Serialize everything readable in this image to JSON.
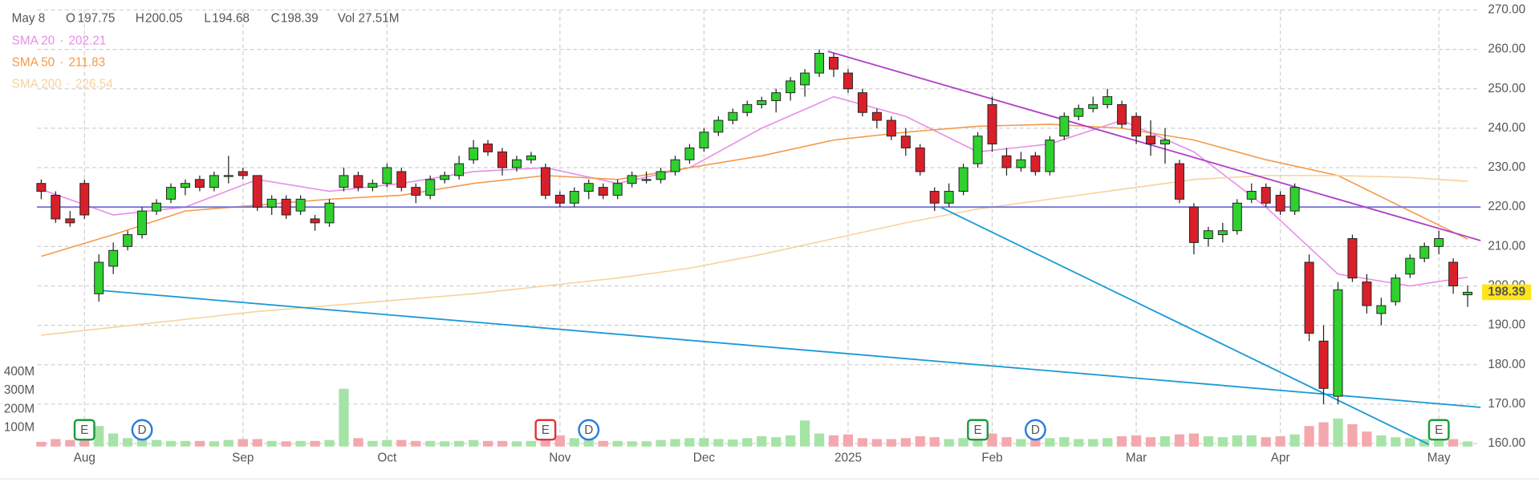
{
  "chart_data": {
    "type": "candlestick",
    "header": {
      "date": "May 8",
      "fields": [
        {
          "label": "O",
          "value": 197.75
        },
        {
          "label": "H",
          "value": 200.05
        },
        {
          "label": "L",
          "value": 194.68
        },
        {
          "label": "C",
          "value": 198.39
        },
        {
          "label": "Vol",
          "value": "27.51M"
        }
      ]
    },
    "separator": "·",
    "categories": [
      null,
      null,
      null,
      "Aug",
      null,
      null,
      null,
      null,
      null,
      null,
      null,
      null,
      null,
      null,
      "Sep",
      null,
      null,
      null,
      null,
      null,
      null,
      null,
      null,
      null,
      "Oct",
      null,
      null,
      null,
      null,
      null,
      null,
      null,
      null,
      null,
      null,
      null,
      "Nov",
      null,
      null,
      null,
      null,
      null,
      null,
      null,
      null,
      null,
      "Dec",
      null,
      null,
      null,
      null,
      null,
      null,
      null,
      null,
      null,
      "2025",
      null,
      null,
      null,
      null,
      null,
      null,
      null,
      null,
      null,
      "Feb",
      null,
      null,
      null,
      null,
      null,
      null,
      null,
      null,
      null,
      "Mar",
      null,
      null,
      null,
      null,
      null,
      null,
      null,
      null,
      null,
      "Apr",
      null,
      null,
      null,
      null,
      null,
      null,
      null,
      null,
      null,
      null,
      "May",
      null,
      null
    ],
    "ohlc": [
      [
        226,
        227,
        222,
        224
      ],
      [
        223,
        224,
        216,
        217
      ],
      [
        217,
        219,
        215,
        216
      ],
      [
        226,
        227,
        217,
        218
      ],
      [
        198,
        208,
        196,
        206
      ],
      [
        205,
        211,
        203,
        209
      ],
      [
        210,
        214,
        209,
        213
      ],
      [
        213,
        220,
        212,
        219
      ],
      [
        219,
        222,
        218,
        221
      ],
      [
        222,
        226,
        221,
        225
      ],
      [
        225,
        227,
        223,
        226
      ],
      [
        227,
        228,
        224,
        225
      ],
      [
        225,
        229,
        224,
        228
      ],
      [
        228,
        233,
        226,
        228
      ],
      [
        229,
        230,
        227,
        228
      ],
      [
        228,
        228,
        219,
        220
      ],
      [
        220,
        223,
        218,
        222
      ],
      [
        222,
        223,
        217,
        218
      ],
      [
        219,
        223,
        218,
        222
      ],
      [
        217,
        218,
        214,
        216
      ],
      [
        216,
        222,
        215,
        221
      ],
      [
        225,
        230,
        224,
        228
      ],
      [
        228,
        229,
        224,
        225
      ],
      [
        225,
        227,
        224,
        226
      ],
      [
        226,
        231,
        225,
        230
      ],
      [
        229,
        230,
        224,
        225
      ],
      [
        225,
        226,
        221,
        223
      ],
      [
        223,
        228,
        222,
        227
      ],
      [
        227,
        229,
        226,
        228
      ],
      [
        228,
        233,
        227,
        231
      ],
      [
        232,
        237,
        231,
        235
      ],
      [
        236,
        237,
        233,
        234
      ],
      [
        234,
        235,
        228,
        230
      ],
      [
        230,
        233,
        229,
        232
      ],
      [
        232,
        234,
        231,
        233
      ],
      [
        230,
        231,
        222,
        223
      ],
      [
        223,
        224,
        220,
        221
      ],
      [
        221,
        225,
        220,
        224
      ],
      [
        224,
        227,
        222,
        226
      ],
      [
        225,
        226,
        222,
        223
      ],
      [
        223,
        227,
        222,
        226
      ],
      [
        226,
        229,
        225,
        228
      ],
      [
        227,
        229,
        226,
        227
      ],
      [
        227,
        230,
        226,
        229
      ],
      [
        229,
        233,
        228,
        232
      ],
      [
        232,
        236,
        231,
        235
      ],
      [
        235,
        240,
        234,
        239
      ],
      [
        239,
        243,
        238,
        242
      ],
      [
        242,
        245,
        241,
        244
      ],
      [
        244,
        247,
        243,
        246
      ],
      [
        246,
        248,
        245,
        247
      ],
      [
        247,
        250,
        244,
        249
      ],
      [
        249,
        253,
        247,
        252
      ],
      [
        251,
        255,
        248,
        254
      ],
      [
        254,
        260,
        253,
        259
      ],
      [
        258,
        259,
        253,
        255
      ],
      [
        254,
        255,
        249,
        250
      ],
      [
        249,
        250,
        243,
        244
      ],
      [
        244,
        245,
        240,
        242
      ],
      [
        242,
        243,
        237,
        238
      ],
      [
        238,
        240,
        233,
        235
      ],
      [
        235,
        236,
        228,
        229
      ],
      [
        224,
        225,
        219,
        221
      ],
      [
        221,
        226,
        220,
        224
      ],
      [
        224,
        231,
        223,
        230
      ],
      [
        231,
        239,
        230,
        238
      ],
      [
        246,
        248,
        234,
        236
      ],
      [
        233,
        235,
        228,
        230
      ],
      [
        230,
        234,
        229,
        232
      ],
      [
        233,
        234,
        228,
        229
      ],
      [
        229,
        238,
        228,
        237
      ],
      [
        238,
        244,
        237,
        243
      ],
      [
        243,
        246,
        242,
        245
      ],
      [
        245,
        248,
        244,
        246
      ],
      [
        246,
        250,
        245,
        248
      ],
      [
        246,
        247,
        240,
        241
      ],
      [
        243,
        244,
        236,
        238
      ],
      [
        238,
        242,
        233,
        236
      ],
      [
        236,
        240,
        231,
        237
      ],
      [
        231,
        232,
        221,
        222
      ],
      [
        220,
        221,
        208,
        211
      ],
      [
        212,
        215,
        210,
        214
      ],
      [
        213,
        216,
        211,
        214
      ],
      [
        214,
        222,
        213,
        221
      ],
      [
        222,
        226,
        221,
        224
      ],
      [
        225,
        226,
        220,
        221
      ],
      [
        223,
        224,
        218,
        219
      ],
      [
        219,
        226,
        218,
        225
      ],
      [
        206,
        208,
        186,
        188
      ],
      [
        186,
        190,
        170,
        174
      ],
      [
        172,
        201,
        170,
        199
      ],
      [
        212,
        213,
        201,
        202
      ],
      [
        201,
        203,
        193,
        195
      ],
      [
        193,
        197,
        190,
        195
      ],
      [
        196,
        203,
        195,
        202
      ],
      [
        203,
        208,
        202,
        207
      ],
      [
        207,
        211,
        206,
        210
      ],
      [
        210,
        214,
        208,
        212
      ],
      [
        206,
        207,
        198,
        200
      ],
      [
        197.75,
        200.05,
        194.68,
        198.39
      ]
    ],
    "volume": [
      25,
      40,
      35,
      60,
      110,
      70,
      45,
      40,
      35,
      30,
      30,
      30,
      28,
      35,
      40,
      40,
      30,
      28,
      30,
      30,
      35,
      310,
      45,
      30,
      35,
      35,
      30,
      30,
      28,
      30,
      35,
      30,
      30,
      28,
      30,
      40,
      60,
      45,
      35,
      30,
      30,
      28,
      28,
      35,
      40,
      45,
      45,
      40,
      38,
      45,
      55,
      50,
      60,
      140,
      70,
      60,
      65,
      45,
      40,
      40,
      45,
      55,
      50,
      40,
      45,
      60,
      70,
      50,
      40,
      40,
      45,
      50,
      40,
      40,
      45,
      55,
      60,
      50,
      55,
      65,
      70,
      55,
      50,
      60,
      60,
      50,
      55,
      65,
      110,
      130,
      150,
      120,
      80,
      60,
      50,
      45,
      40,
      50,
      40,
      27.51
    ],
    "up_color": "#2ed12e",
    "down_color": "#d9202a",
    "volume_up_color": "#a6e3a6",
    "volume_down_color": "#f4a7ad",
    "ylim": [
      160,
      270
    ],
    "yticks": [
      {
        "value": 160,
        "label": "160.00"
      },
      {
        "value": 170,
        "label": "170.00"
      },
      {
        "value": 180,
        "label": "180.00"
      },
      {
        "value": 190,
        "label": "190.00"
      },
      {
        "value": 200,
        "label": "200.00"
      },
      {
        "value": 210,
        "label": "210.00"
      },
      {
        "value": 220,
        "label": "220.00"
      },
      {
        "value": 230,
        "label": "230.00"
      },
      {
        "value": 240,
        "label": "240.00"
      },
      {
        "value": 250,
        "label": "250.00"
      },
      {
        "value": 260,
        "label": "260.00"
      },
      {
        "value": 270,
        "label": "270.00"
      }
    ],
    "volume_ticks": [
      {
        "value": 100,
        "label": "100M"
      },
      {
        "value": 200,
        "label": "200M"
      },
      {
        "value": 300,
        "label": "300M"
      },
      {
        "value": 400,
        "label": "400M"
      }
    ],
    "grid": true,
    "indicators": [
      {
        "name": "SMA 20",
        "value": 202.21,
        "color": "#e88de8",
        "x": [
          0,
          5,
          10,
          15,
          20,
          25,
          30,
          35,
          40,
          45,
          50,
          55,
          60,
          65,
          70,
          75,
          80,
          85,
          90,
          95,
          99
        ],
        "values": [
          224.5,
          218,
          220,
          227,
          224,
          226,
          229,
          230,
          226,
          230,
          240,
          248,
          243,
          234,
          236,
          242,
          234,
          220,
          203,
          200,
          202.21
        ]
      },
      {
        "name": "SMA 50",
        "value": 211.83,
        "color": "#f5994a",
        "x": [
          0,
          5,
          10,
          15,
          20,
          25,
          30,
          35,
          40,
          45,
          50,
          55,
          60,
          65,
          70,
          75,
          80,
          85,
          90,
          95,
          99
        ],
        "values": [
          207.5,
          213,
          219,
          220.5,
          222,
          223,
          226,
          228,
          227,
          230,
          233,
          237,
          239,
          240.5,
          241,
          240,
          237,
          232,
          228,
          219,
          211.83
        ]
      },
      {
        "name": "SMA 200",
        "value": 226.54,
        "color": "#f7d29c",
        "x": [
          0,
          5,
          10,
          15,
          20,
          25,
          30,
          35,
          40,
          45,
          50,
          55,
          60,
          65,
          70,
          75,
          80,
          85,
          90,
          95,
          99
        ],
        "values": [
          187.5,
          189.5,
          191.5,
          193.5,
          195,
          196.5,
          198,
          200,
          202,
          204.5,
          208,
          212,
          216,
          219.5,
          222,
          224.5,
          227,
          228,
          228,
          227.5,
          226.54
        ]
      }
    ],
    "drawings": [
      {
        "color": "#7474d8",
        "x": [
          -0.3,
          99.9
        ],
        "values": [
          220,
          220
        ]
      },
      {
        "color": "#b040c8",
        "x": [
          54.6,
          99.9
        ],
        "values": [
          259.5,
          211.5
        ]
      },
      {
        "color": "#1a9ad6",
        "x": [
          4.3,
          99.9
        ],
        "values": [
          198.8,
          169.2
        ]
      },
      {
        "color": "#1a9ad6",
        "x": [
          62.4,
          96.3
        ],
        "values": [
          220,
          159.8
        ]
      }
    ],
    "events": [
      {
        "index": 3,
        "label": "E",
        "color": "#1a9c3e",
        "shape": "square"
      },
      {
        "index": 7,
        "label": "D",
        "color": "#2a7de1",
        "shape": "circle"
      },
      {
        "index": 35,
        "label": "E",
        "color": "#e0343c",
        "shape": "square"
      },
      {
        "index": 38,
        "label": "D",
        "color": "#2a7de1",
        "shape": "circle"
      },
      {
        "index": 65,
        "label": "E",
        "color": "#1a9c3e",
        "shape": "square"
      },
      {
        "index": 69,
        "label": "D",
        "color": "#2a7de1",
        "shape": "circle"
      },
      {
        "index": 97,
        "label": "E",
        "color": "#1a9c3e",
        "shape": "square"
      }
    ]
  }
}
